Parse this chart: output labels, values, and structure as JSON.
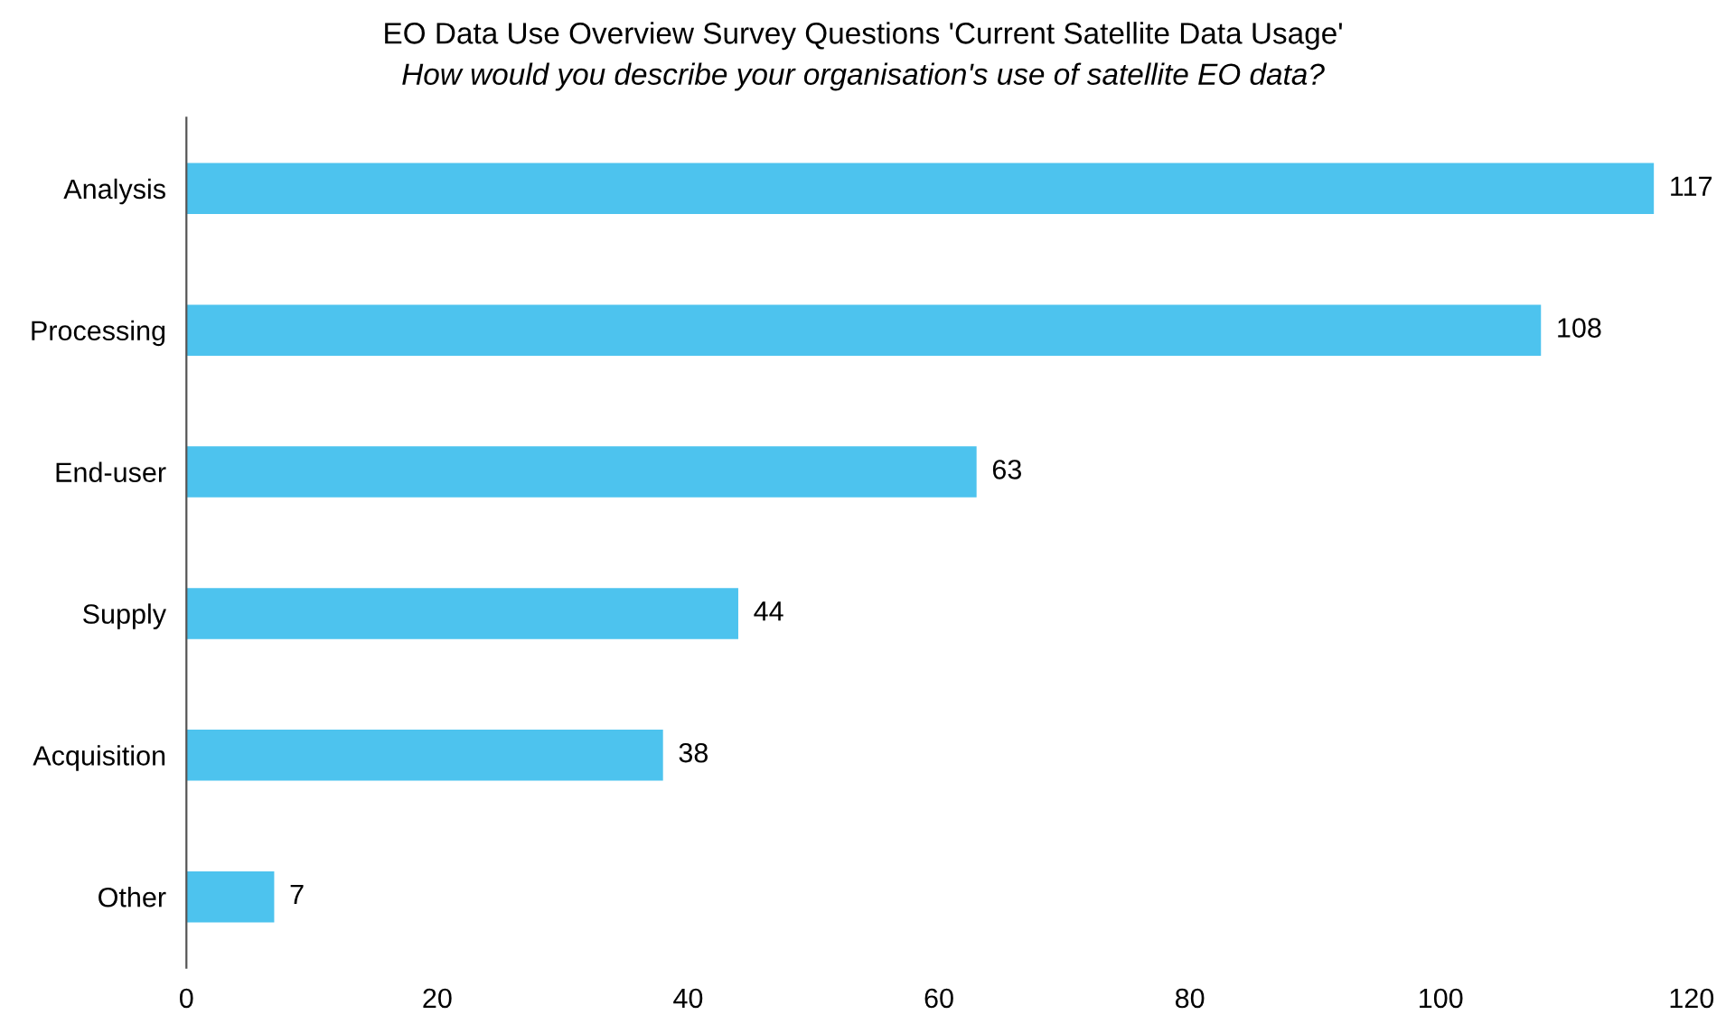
{
  "chart_data": {
    "type": "bar",
    "orientation": "horizontal",
    "title": "EO Data Use Overview Survey Questions 'Current Satellite Data Usage'",
    "subtitle": "How would you describe your organisation's use of satellite EO data?",
    "categories": [
      "Analysis",
      "Processing",
      "End-user",
      "Supply",
      "Acquisition",
      "Other"
    ],
    "values": [
      117,
      108,
      63,
      44,
      38,
      7
    ],
    "color": "#4dc3ee",
    "xlim": [
      0,
      120
    ],
    "xticks": [
      0,
      20,
      40,
      60,
      80,
      100,
      120
    ],
    "data_labels": true,
    "grid": false,
    "legend": false
  }
}
